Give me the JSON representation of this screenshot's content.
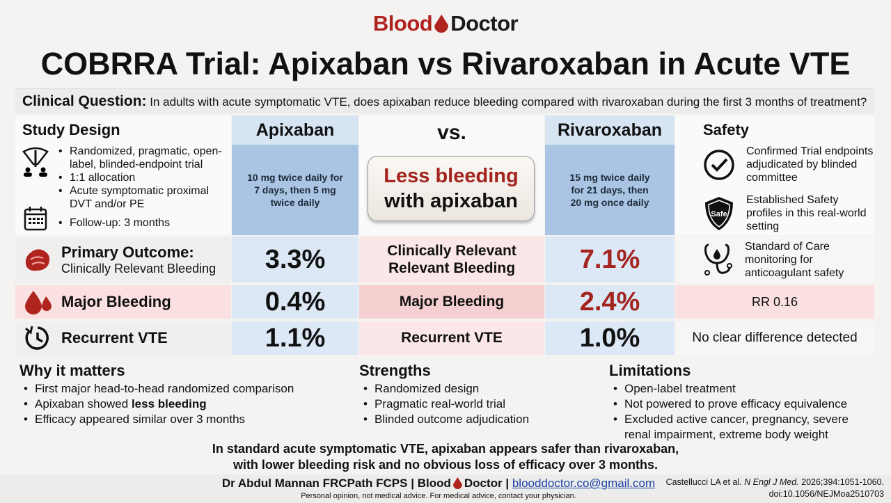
{
  "logo": {
    "part1": "Blood",
    "part2": "Doctor"
  },
  "title": "COBRRA Trial: Apixaban vs Rivaroxaban in Acute VTE",
  "clinical_question": {
    "label": "Clinical Question:",
    "text": "In adults with acute symptomatic VTE, does apixaban reduce bleeding compared with rivaroxaban during the first 3 months of treatment?"
  },
  "study_design": {
    "heading": "Study Design",
    "items": [
      "Randomized, pragmatic, open-label, blinded-endpoint trial",
      "1:1 allocation",
      "Acute symptomatic proximal DVT and/or PE"
    ],
    "followup": "Follow-up: 3 months"
  },
  "apixaban": {
    "name": "Apixaban",
    "dose": "10 mg twice daily for 7 days, then 5 mg twice daily",
    "primary": "3.3%",
    "major": "0.4%",
    "recurrent": "1.1%"
  },
  "rivaroxaban": {
    "name": "Rivaroxaban",
    "dose": "15 mg twice daily for 21 days, then 20 mg once daily",
    "primary": "7.1%",
    "major": "2.4%",
    "recurrent": "1.0%"
  },
  "middle": {
    "vs": "vs.",
    "callout_line1": "Less bleeding",
    "callout_line2": "with apixaban",
    "primary": "Clinically Relevant Relevant Bleeding",
    "major": "Major Bleeding",
    "recurrent": "Recurrent VTE"
  },
  "safety": {
    "heading": "Safety",
    "items": [
      "Confirmed Trial endpoints adjudicated by blinded committee",
      "Established Safety profiles in this real-world setting",
      "Standard of Care monitoring for anticoagulant safety"
    ],
    "shield_text": "Safe",
    "major_note": "RR 0.16",
    "recurrent_note": "No clear difference detected"
  },
  "outcomes": {
    "primary_label": "Primary Outcome:",
    "primary_sub": "Clinically Relevant Bleeding",
    "major_label": "Major Bleeding",
    "recurrent_label": "Recurrent VTE"
  },
  "why": {
    "heading": "Why it matters",
    "items": [
      "First major head-to-head randomized comparison",
      "Apixaban showed ",
      "Efficacy appeared similar over 3 months"
    ],
    "bold": "less bleeding"
  },
  "strengths": {
    "heading": "Strengths",
    "items": [
      "Randomized design",
      "Pragmatic real-world trial",
      "Blinded outcome adjudication"
    ]
  },
  "limitations": {
    "heading": "Limitations",
    "items": [
      "Open-label treatment",
      "Not powered to prove efficacy equivalence",
      "Excluded active cancer, pregnancy, severe renal impairment, extreme body weight"
    ]
  },
  "conclusion": {
    "line1": "In standard acute symptomatic VTE, apixaban appears safer than rivaroxaban,",
    "line2": "with lower bleeding risk and no obvious loss of efficacy over 3 months."
  },
  "footer": {
    "author": "Dr Abdul Mannan FRCPath FCPS | ",
    "brand1": "Blood",
    "brand2": "Doctor",
    "sep": " | ",
    "email": "blooddoctor.co@gmail.com",
    "disclaimer": "Personal opinion, not medical advice. For medical advice, contact your physician.",
    "citation_pre": "Castellucci LA et al. ",
    "journal": "N Engl J Med.",
    "citation_post": " 2026;394:1051-1060.",
    "doi": "doi:10.1056/NEJMoa2510703"
  },
  "colors": {
    "brand_red": "#b0241f",
    "blue": "#a9c5e3",
    "pink": "#fae0e0"
  }
}
